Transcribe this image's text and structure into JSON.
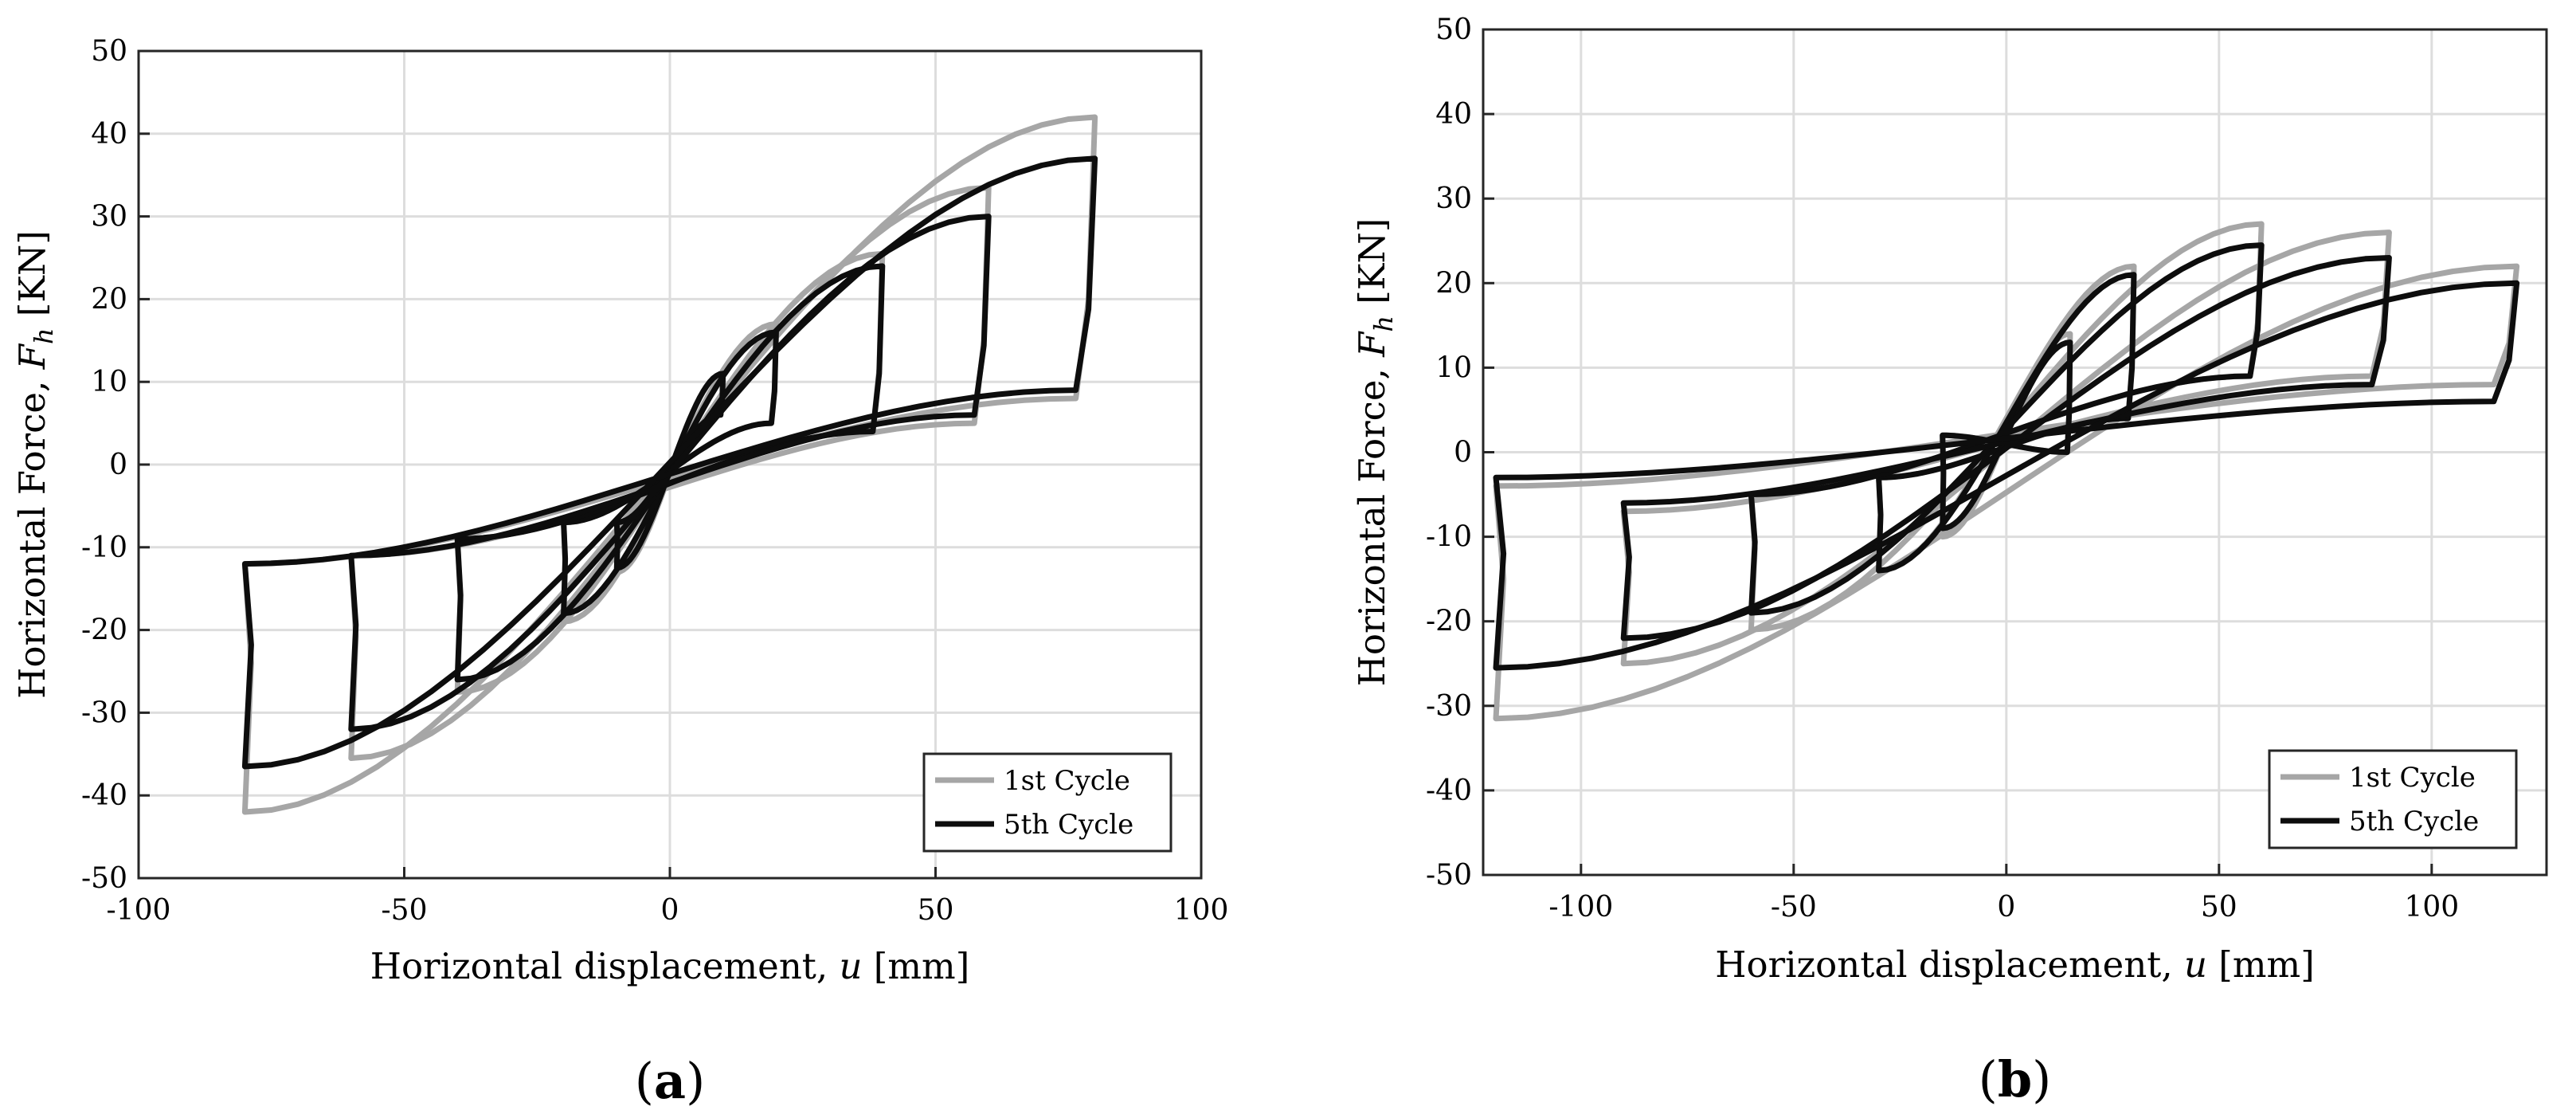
{
  "chart_data": [
    {
      "type": "line",
      "panel_label": "a",
      "xlabel": "Horizontal displacement,",
      "xlabel_symbol": "u",
      "xlabel_unit": "[mm]",
      "ylabel": "Horizontal Force,",
      "ylabel_symbol": "F",
      "ylabel_subscript": "h",
      "ylabel_unit": "[KN]",
      "xlim": [
        -100,
        100
      ],
      "ylim": [
        -50,
        50
      ],
      "xticks": [
        -100,
        -50,
        0,
        50,
        100
      ],
      "yticks": [
        -50,
        -40,
        -30,
        -20,
        -10,
        0,
        10,
        20,
        30,
        40,
        50
      ],
      "grid": true,
      "legend_position": "bottom-right",
      "series": [
        {
          "name": "1st Cycle",
          "color": "#a6a6a6",
          "loops": [
            {
              "amplitude": 10,
              "peak_pos": 11,
              "peak_neg": -13,
              "pos_top": 11,
              "pos_bot": 6,
              "neg_bot": -13,
              "neg_top": -7
            },
            {
              "amplitude": 20,
              "peak_pos": 17,
              "peak_neg": -19,
              "pos_top": 17,
              "pos_bot": 5,
              "neg_bot": -19,
              "neg_top": -7
            },
            {
              "amplitude": 40,
              "peak_pos": 25.5,
              "peak_neg": -27.5,
              "pos_top": 25.5,
              "pos_bot": 4,
              "neg_bot": -27.5,
              "neg_top": -9
            },
            {
              "amplitude": 60,
              "peak_pos": 33.5,
              "peak_neg": -35.5,
              "pos_top": 33.5,
              "pos_bot": 5,
              "neg_bot": -35.5,
              "neg_top": -11
            },
            {
              "amplitude": 80,
              "peak_pos": 42,
              "peak_neg": -42,
              "pos_top": 42,
              "pos_bot": 8,
              "neg_bot": -42,
              "neg_top": -12
            }
          ]
        },
        {
          "name": "5th Cycle",
          "color": "#0d0d0d",
          "loops": [
            {
              "amplitude": 10,
              "peak_pos": 11,
              "peak_neg": -12.5,
              "pos_top": 11,
              "pos_bot": 6,
              "neg_bot": -12.5,
              "neg_top": -7
            },
            {
              "amplitude": 20,
              "peak_pos": 16,
              "peak_neg": -18,
              "pos_top": 16,
              "pos_bot": 5,
              "neg_bot": -18,
              "neg_top": -7
            },
            {
              "amplitude": 40,
              "peak_pos": 24,
              "peak_neg": -26,
              "pos_top": 24,
              "pos_bot": 4,
              "neg_bot": -26,
              "neg_top": -9
            },
            {
              "amplitude": 60,
              "peak_pos": 30,
              "peak_neg": -32,
              "pos_top": 30,
              "pos_bot": 6,
              "neg_bot": -32,
              "neg_top": -11
            },
            {
              "amplitude": 80,
              "peak_pos": 37,
              "peak_neg": -36.5,
              "pos_top": 37,
              "pos_bot": 9,
              "neg_bot": -36.5,
              "neg_top": -12
            }
          ]
        }
      ]
    },
    {
      "type": "line",
      "panel_label": "b",
      "xlabel": "Horizontal displacement,",
      "xlabel_symbol": "u",
      "xlabel_unit": "[mm]",
      "ylabel": "Horizontal Force,",
      "ylabel_symbol": "F",
      "ylabel_subscript": "h",
      "ylabel_unit": "[KN]",
      "xlim": [
        -123,
        127
      ],
      "ylim": [
        -50,
        50
      ],
      "xticks": [
        -100,
        -50,
        0,
        50,
        100
      ],
      "yticks": [
        -50,
        -40,
        -30,
        -20,
        -10,
        0,
        10,
        20,
        30,
        40,
        50
      ],
      "grid": true,
      "legend_position": "bottom-right",
      "series": [
        {
          "name": "1st Cycle",
          "color": "#a6a6a6",
          "loops": [
            {
              "amplitude": 15,
              "peak_pos": 14,
              "peak_neg": -10,
              "pos_top": 14,
              "pos_bot": 0,
              "neg_bot": -10,
              "neg_top": 2
            },
            {
              "amplitude": 30,
              "peak_pos": 22,
              "peak_neg": -14,
              "pos_top": 22,
              "pos_bot": 4,
              "neg_bot": -14,
              "neg_top": -3
            },
            {
              "amplitude": 60,
              "peak_pos": 27,
              "peak_neg": -21,
              "pos_top": 27,
              "pos_bot": 9,
              "neg_bot": -21,
              "neg_top": -5
            },
            {
              "amplitude": 90,
              "peak_pos": 26,
              "peak_neg": -25,
              "pos_top": 26,
              "pos_bot": 9,
              "neg_bot": -25,
              "neg_top": -7
            },
            {
              "amplitude": 120,
              "peak_pos": 22,
              "peak_neg": -31.5,
              "pos_top": 22,
              "pos_bot": 8,
              "neg_bot": -31.5,
              "neg_top": -4
            }
          ]
        },
        {
          "name": "5th Cycle",
          "color": "#0d0d0d",
          "loops": [
            {
              "amplitude": 15,
              "peak_pos": 13,
              "peak_neg": -9,
              "pos_top": 13,
              "pos_bot": 0,
              "neg_bot": -9,
              "neg_top": 2
            },
            {
              "amplitude": 30,
              "peak_pos": 21,
              "peak_neg": -14,
              "pos_top": 21,
              "pos_bot": 4,
              "neg_bot": -14,
              "neg_top": -3
            },
            {
              "amplitude": 60,
              "peak_pos": 24.5,
              "peak_neg": -19,
              "pos_top": 24.5,
              "pos_bot": 9,
              "neg_bot": -19,
              "neg_top": -5
            },
            {
              "amplitude": 90,
              "peak_pos": 23,
              "peak_neg": -22,
              "pos_top": 23,
              "pos_bot": 8,
              "neg_bot": -22,
              "neg_top": -6
            },
            {
              "amplitude": 120,
              "peak_pos": 20,
              "peak_neg": -25.5,
              "pos_top": 20,
              "pos_bot": 6,
              "neg_bot": -25.5,
              "neg_top": -3
            }
          ]
        }
      ]
    }
  ]
}
